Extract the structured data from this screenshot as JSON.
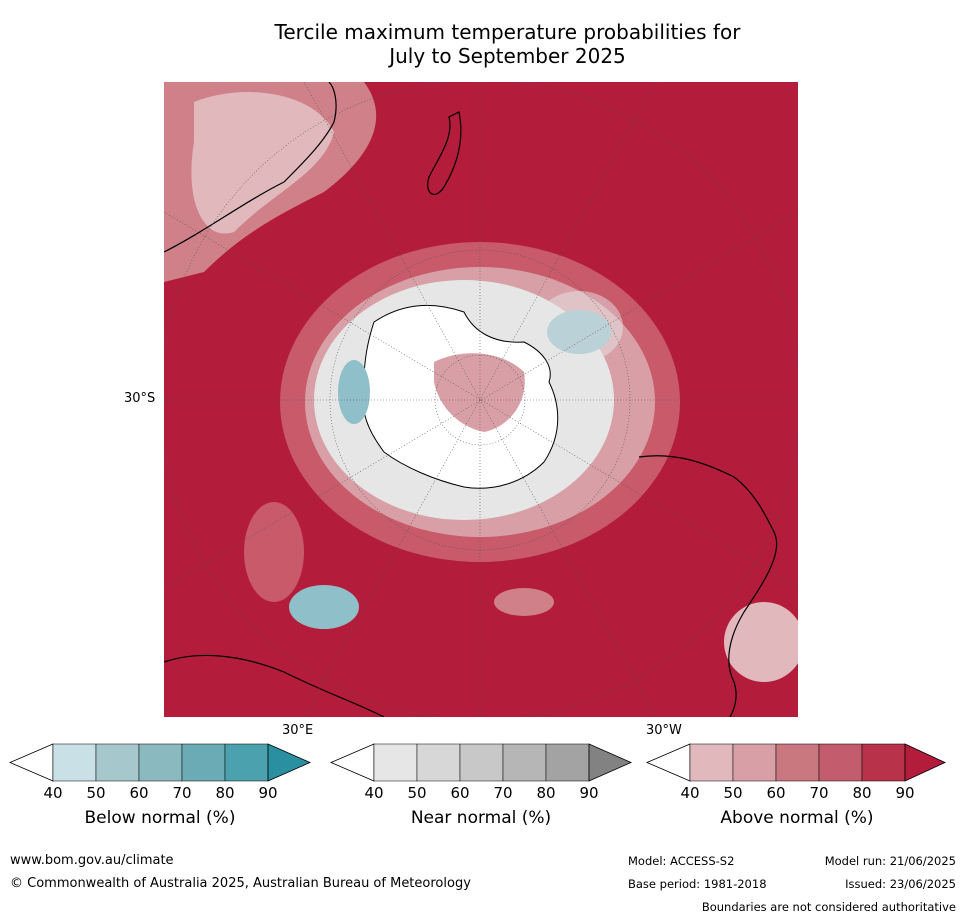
{
  "title_line1": "Tercile maximum temperature probabilities for",
  "title_line2": "July to September 2025",
  "map": {
    "lat_label": "30°S",
    "lon_label_east": "30°E",
    "lon_label_west": "30°W",
    "colors": {
      "above_90": "#b31c3a",
      "above_80": "#bf3550",
      "above_70": "#c85a6a",
      "above_60": "#d08089",
      "above_50": "#d8a0a6",
      "above_40": "#e1b9bd",
      "near": "#e6e6e6",
      "below": "#8fbfc8",
      "land_outline": "#000000"
    }
  },
  "colorbars": [
    {
      "label": "Below normal (%)",
      "ticks": [
        "40",
        "50",
        "60",
        "70",
        "80",
        "90"
      ],
      "colors": [
        "#ffffff",
        "#c9e0e6",
        "#a6c8cd",
        "#8bb9c0",
        "#6aabb5",
        "#4ba1ad",
        "#2a8fa0"
      ]
    },
    {
      "label": "Near normal (%)",
      "ticks": [
        "40",
        "50",
        "60",
        "70",
        "80",
        "90"
      ],
      "colors": [
        "#ffffff",
        "#e6e6e6",
        "#d7d7d7",
        "#c8c8c8",
        "#b6b6b6",
        "#a3a3a3",
        "#828282"
      ]
    },
    {
      "label": "Above normal (%)",
      "ticks": [
        "40",
        "50",
        "60",
        "70",
        "80",
        "90"
      ],
      "colors": [
        "#ffffff",
        "#e1b9bd",
        "#d8a0a6",
        "#c97880",
        "#c35c6c",
        "#b83349",
        "#b31c3a"
      ]
    }
  ],
  "footer": {
    "url": "www.bom.gov.au/climate",
    "copyright": "© Commonwealth of Australia 2025, Australian Bureau of Meteorology",
    "model": "Model: ACCESS-S2",
    "base_period": "Base period: 1981-2018",
    "model_run": "Model run: 21/06/2025",
    "issued": "Issued: 23/06/2025",
    "disclaimer": "Boundaries are not considered authoritative"
  }
}
